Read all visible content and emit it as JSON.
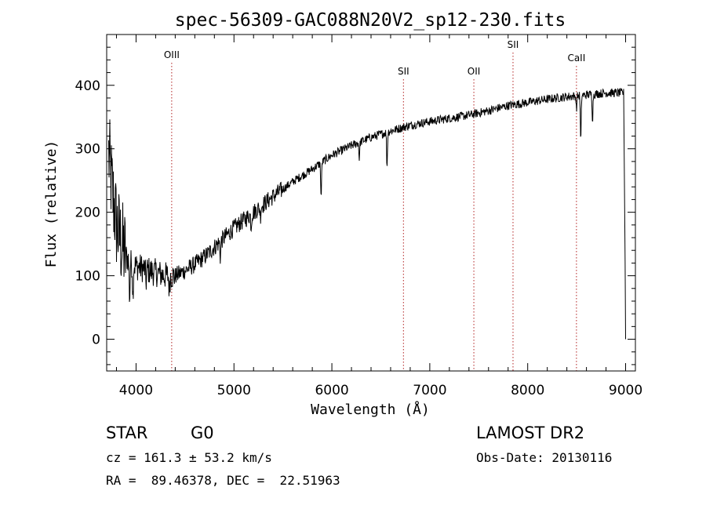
{
  "chart_data": {
    "type": "line",
    "title": "spec-56309-GAC088N20V2_sp12-230.fits",
    "xlabel": "Wavelength (Å)",
    "ylabel": "Flux (relative)",
    "xlim": [
      3700,
      9100
    ],
    "ylim": [
      -50,
      480
    ],
    "x_ticks": [
      4000,
      5000,
      6000,
      7000,
      8000,
      9000
    ],
    "y_ticks": [
      0,
      100,
      200,
      300,
      400
    ],
    "grid": false,
    "line_color": "#000000",
    "marker_color": "#b22222",
    "lines": [
      {
        "name": "OIII",
        "wavelength": 4364
      },
      {
        "name": "SII",
        "wavelength": 6731
      },
      {
        "name": "OII",
        "wavelength": 7450
      },
      {
        "name": "SII",
        "wavelength": 7850
      },
      {
        "name": "CaII",
        "wavelength": 8498
      }
    ],
    "continuum": [
      [
        3720,
        290
      ],
      [
        3760,
        230
      ],
      [
        3800,
        180
      ],
      [
        3850,
        150
      ],
      [
        3900,
        130
      ],
      [
        3950,
        120
      ],
      [
        4000,
        115
      ],
      [
        4100,
        110
      ],
      [
        4200,
        105
      ],
      [
        4300,
        100
      ],
      [
        4400,
        100
      ],
      [
        4500,
        108
      ],
      [
        4600,
        118
      ],
      [
        4700,
        130
      ],
      [
        4800,
        145
      ],
      [
        4900,
        160
      ],
      [
        5000,
        175
      ],
      [
        5200,
        200
      ],
      [
        5400,
        225
      ],
      [
        5600,
        248
      ],
      [
        5800,
        268
      ],
      [
        6000,
        290
      ],
      [
        6200,
        305
      ],
      [
        6400,
        318
      ],
      [
        6600,
        328
      ],
      [
        6800,
        337
      ],
      [
        7000,
        343
      ],
      [
        7200,
        348
      ],
      [
        7400,
        353
      ],
      [
        7600,
        360
      ],
      [
        7800,
        368
      ],
      [
        8000,
        373
      ],
      [
        8200,
        378
      ],
      [
        8400,
        382
      ],
      [
        8600,
        385
      ],
      [
        8800,
        388
      ],
      [
        8950,
        388
      ]
    ],
    "absorption_features": [
      [
        3934,
        60
      ],
      [
        3968,
        50
      ],
      [
        4102,
        20
      ],
      [
        4340,
        25
      ],
      [
        4861,
        25
      ],
      [
        5176,
        20
      ],
      [
        5270,
        15
      ],
      [
        5890,
        55
      ],
      [
        6280,
        25
      ],
      [
        6563,
        55
      ],
      [
        8498,
        20
      ],
      [
        8542,
        75
      ],
      [
        8662,
        40
      ]
    ]
  },
  "footer": {
    "class_label": "STAR",
    "subclass": "G0",
    "redshift": "cz = 161.3 ± 53.2 km/s",
    "coordinates": "RA =  89.46378, DEC =  22.51963",
    "survey": "LAMOST DR2",
    "obs_date": "Obs-Date: 20130116"
  }
}
